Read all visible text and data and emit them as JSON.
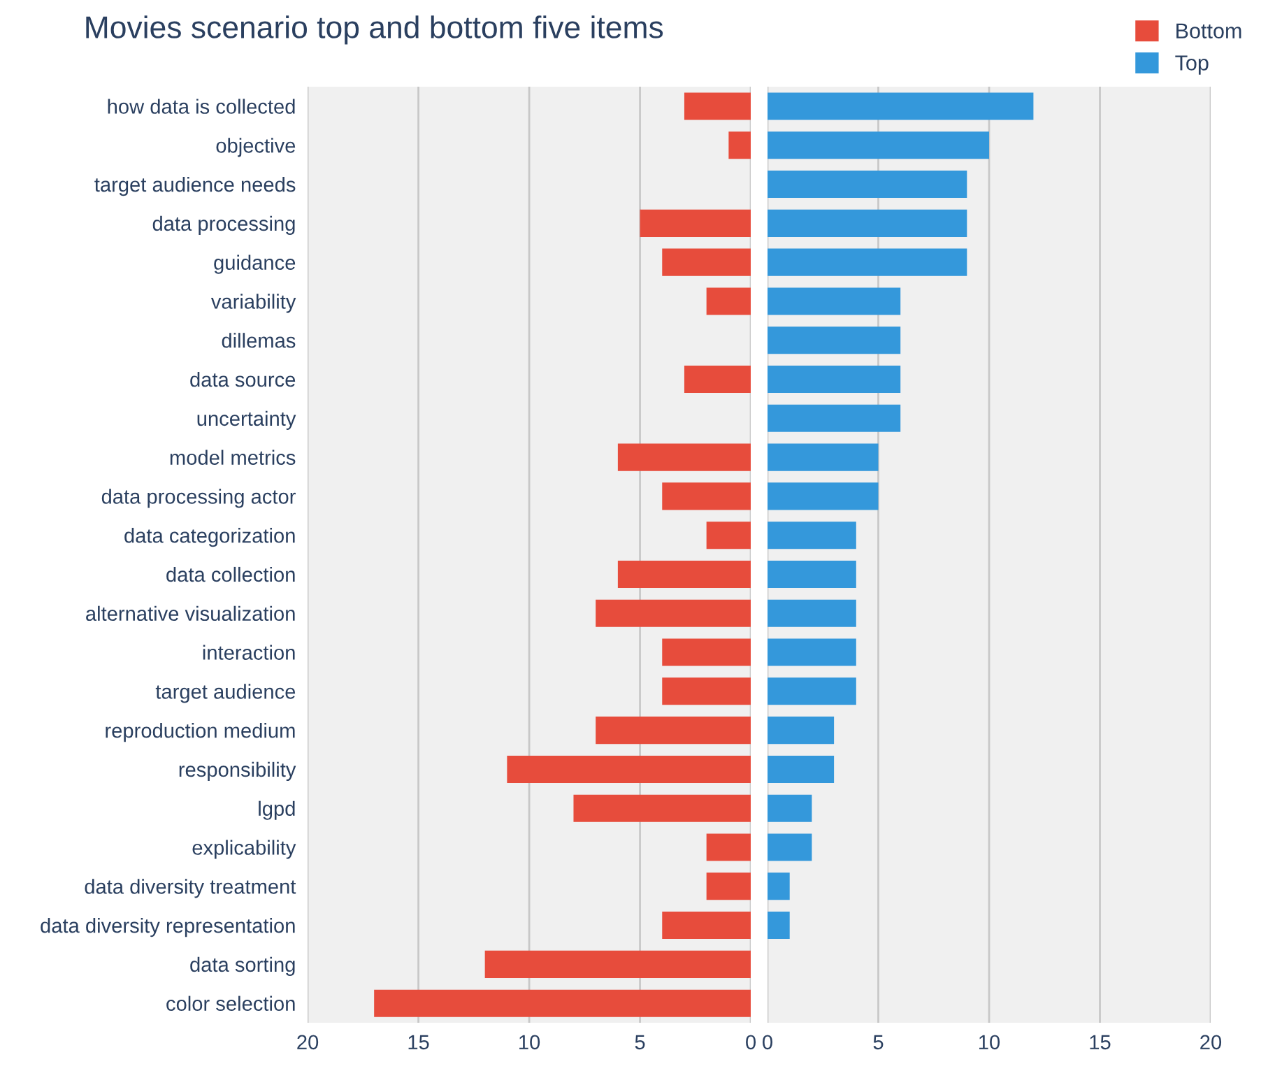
{
  "chart_data": [
    {
      "type": "bar",
      "orientation": "horizontal",
      "title": "Movies scenario top and bottom five items",
      "categories": [
        "how data is collected",
        "objective",
        "target audience needs",
        "data processing",
        "guidance",
        "variability",
        "dillemas",
        "data source",
        "uncertainty",
        "model metrics",
        "data processing actor",
        "data categorization",
        "data collection",
        "alternative visualization",
        "interaction",
        "target audience",
        "reproduction medium",
        "responsibility",
        "lgpd",
        "explicability",
        "data diversity treatment",
        "data diversity representation",
        "data sorting",
        "color selection"
      ],
      "series": [
        {
          "name": "Bottom",
          "color": "#e74c3c",
          "values": [
            3,
            1,
            0,
            5,
            4,
            2,
            0,
            3,
            0,
            6,
            4,
            2,
            6,
            7,
            4,
            4,
            7,
            11,
            8,
            2,
            2,
            4,
            12,
            17
          ]
        }
      ],
      "xlim": [
        20,
        0
      ],
      "xticks": [
        20,
        15,
        10,
        5,
        0
      ],
      "grid": "x",
      "legend": "top right"
    },
    {
      "type": "bar",
      "orientation": "horizontal",
      "categories": [
        null,
        null,
        null,
        null,
        null,
        null,
        null,
        null,
        null,
        null,
        null,
        null,
        null,
        null,
        null,
        null,
        null,
        null,
        null,
        null,
        null,
        null,
        null,
        null
      ],
      "series": [
        {
          "name": "Top",
          "color": "#3498db",
          "values": [
            12,
            10,
            9,
            9,
            9,
            6,
            6,
            6,
            6,
            5,
            5,
            4,
            4,
            4,
            4,
            4,
            3,
            3,
            2,
            2,
            1,
            1,
            0,
            0
          ]
        }
      ],
      "xlim": [
        0,
        20
      ],
      "xticks": [
        0,
        5,
        10,
        15,
        20
      ],
      "grid": "x",
      "legend": "top right",
      "tick_labels": "x"
    }
  ]
}
